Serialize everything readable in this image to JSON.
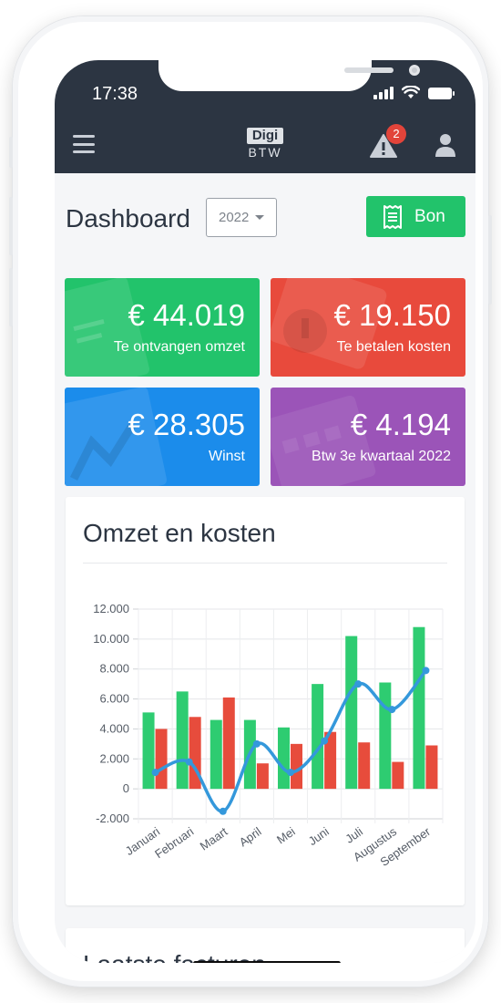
{
  "status_bar": {
    "time": "17:38"
  },
  "header": {
    "logo_top": "Digi",
    "logo_bottom": "BTW",
    "notification_count": "2"
  },
  "page": {
    "title": "Dashboard",
    "year_selected": "2022",
    "bon_button_label": "Bon"
  },
  "kpis": [
    {
      "amount": "€ 44.019",
      "label": "Te ontvangen omzet",
      "color": "#22c36b"
    },
    {
      "amount": "€ 19.150",
      "label": "Te betalen kosten",
      "color": "#e84a3c"
    },
    {
      "amount": "€ 28.305",
      "label": "Winst",
      "color": "#1b8ceb"
    },
    {
      "amount": "€ 4.194",
      "label": "Btw 3e kwartaal 2022",
      "color": "#9b54b8"
    }
  ],
  "chart_card": {
    "title": "Omzet en kosten"
  },
  "chart_data": {
    "type": "bar",
    "categories": [
      "Januari",
      "Februari",
      "Maart",
      "April",
      "Mei",
      "Juni",
      "Juli",
      "Augustus",
      "September"
    ],
    "series": [
      {
        "values": [
          5100,
          6500,
          4600,
          4600,
          4100,
          7000,
          10200,
          7100,
          10800
        ],
        "color": "#2ecc71",
        "kind": "bar"
      },
      {
        "values": [
          4000,
          4800,
          6100,
          1700,
          3000,
          3800,
          3100,
          1800,
          2900
        ],
        "color": "#e74c3c",
        "kind": "bar"
      },
      {
        "values": [
          1100,
          1800,
          -1500,
          3000,
          1100,
          3200,
          7000,
          5300,
          7900
        ],
        "color": "#3498db",
        "kind": "line"
      }
    ],
    "y_ticks": [
      "12.000",
      "10.000",
      "8.000",
      "6.000",
      "4.000",
      "2.000",
      "0",
      "-2.000"
    ],
    "ylim": [
      -2000,
      12000
    ],
    "grid": true,
    "legend": "none"
  },
  "invoices_card": {
    "title": "Laatste facturen"
  },
  "icons": {
    "menu": "hamburger-icon",
    "alert": "warning-icon",
    "user": "user-icon",
    "receipt": "receipt-icon"
  }
}
